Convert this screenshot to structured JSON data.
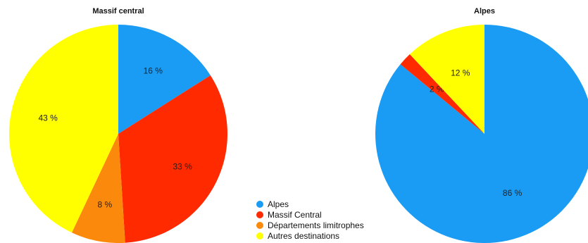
{
  "chart_data": [
    {
      "type": "pie",
      "title": "Massif central",
      "categories": [
        "Alpes",
        "Massif Central",
        "Départements limitrophes",
        "Autres destinations"
      ],
      "values": [
        16,
        33,
        8,
        43
      ],
      "labels": [
        "16 %",
        "33 %",
        "8 %",
        "43 %"
      ],
      "start_angle_deg": 0,
      "direction": "clockwise"
    },
    {
      "type": "pie",
      "title": "Alpes",
      "categories": [
        "Alpes",
        "Massif Central",
        "Départements limitrophes",
        "Autres destinations"
      ],
      "values": [
        86,
        2,
        0,
        12
      ],
      "labels": [
        "86 %",
        "2 %",
        "",
        "12 %"
      ],
      "start_angle_deg": 0,
      "direction": "clockwise"
    }
  ],
  "legend": {
    "placement": "bottom-center",
    "items": [
      {
        "label": "Alpes",
        "color": "#1a9cf4"
      },
      {
        "label": "Massif Central",
        "color": "#ff2a00"
      },
      {
        "label": "Départements limitrophes",
        "color": "#fb8a0c"
      },
      {
        "label": "Autres destinations",
        "color": "#ffff00"
      }
    ]
  }
}
